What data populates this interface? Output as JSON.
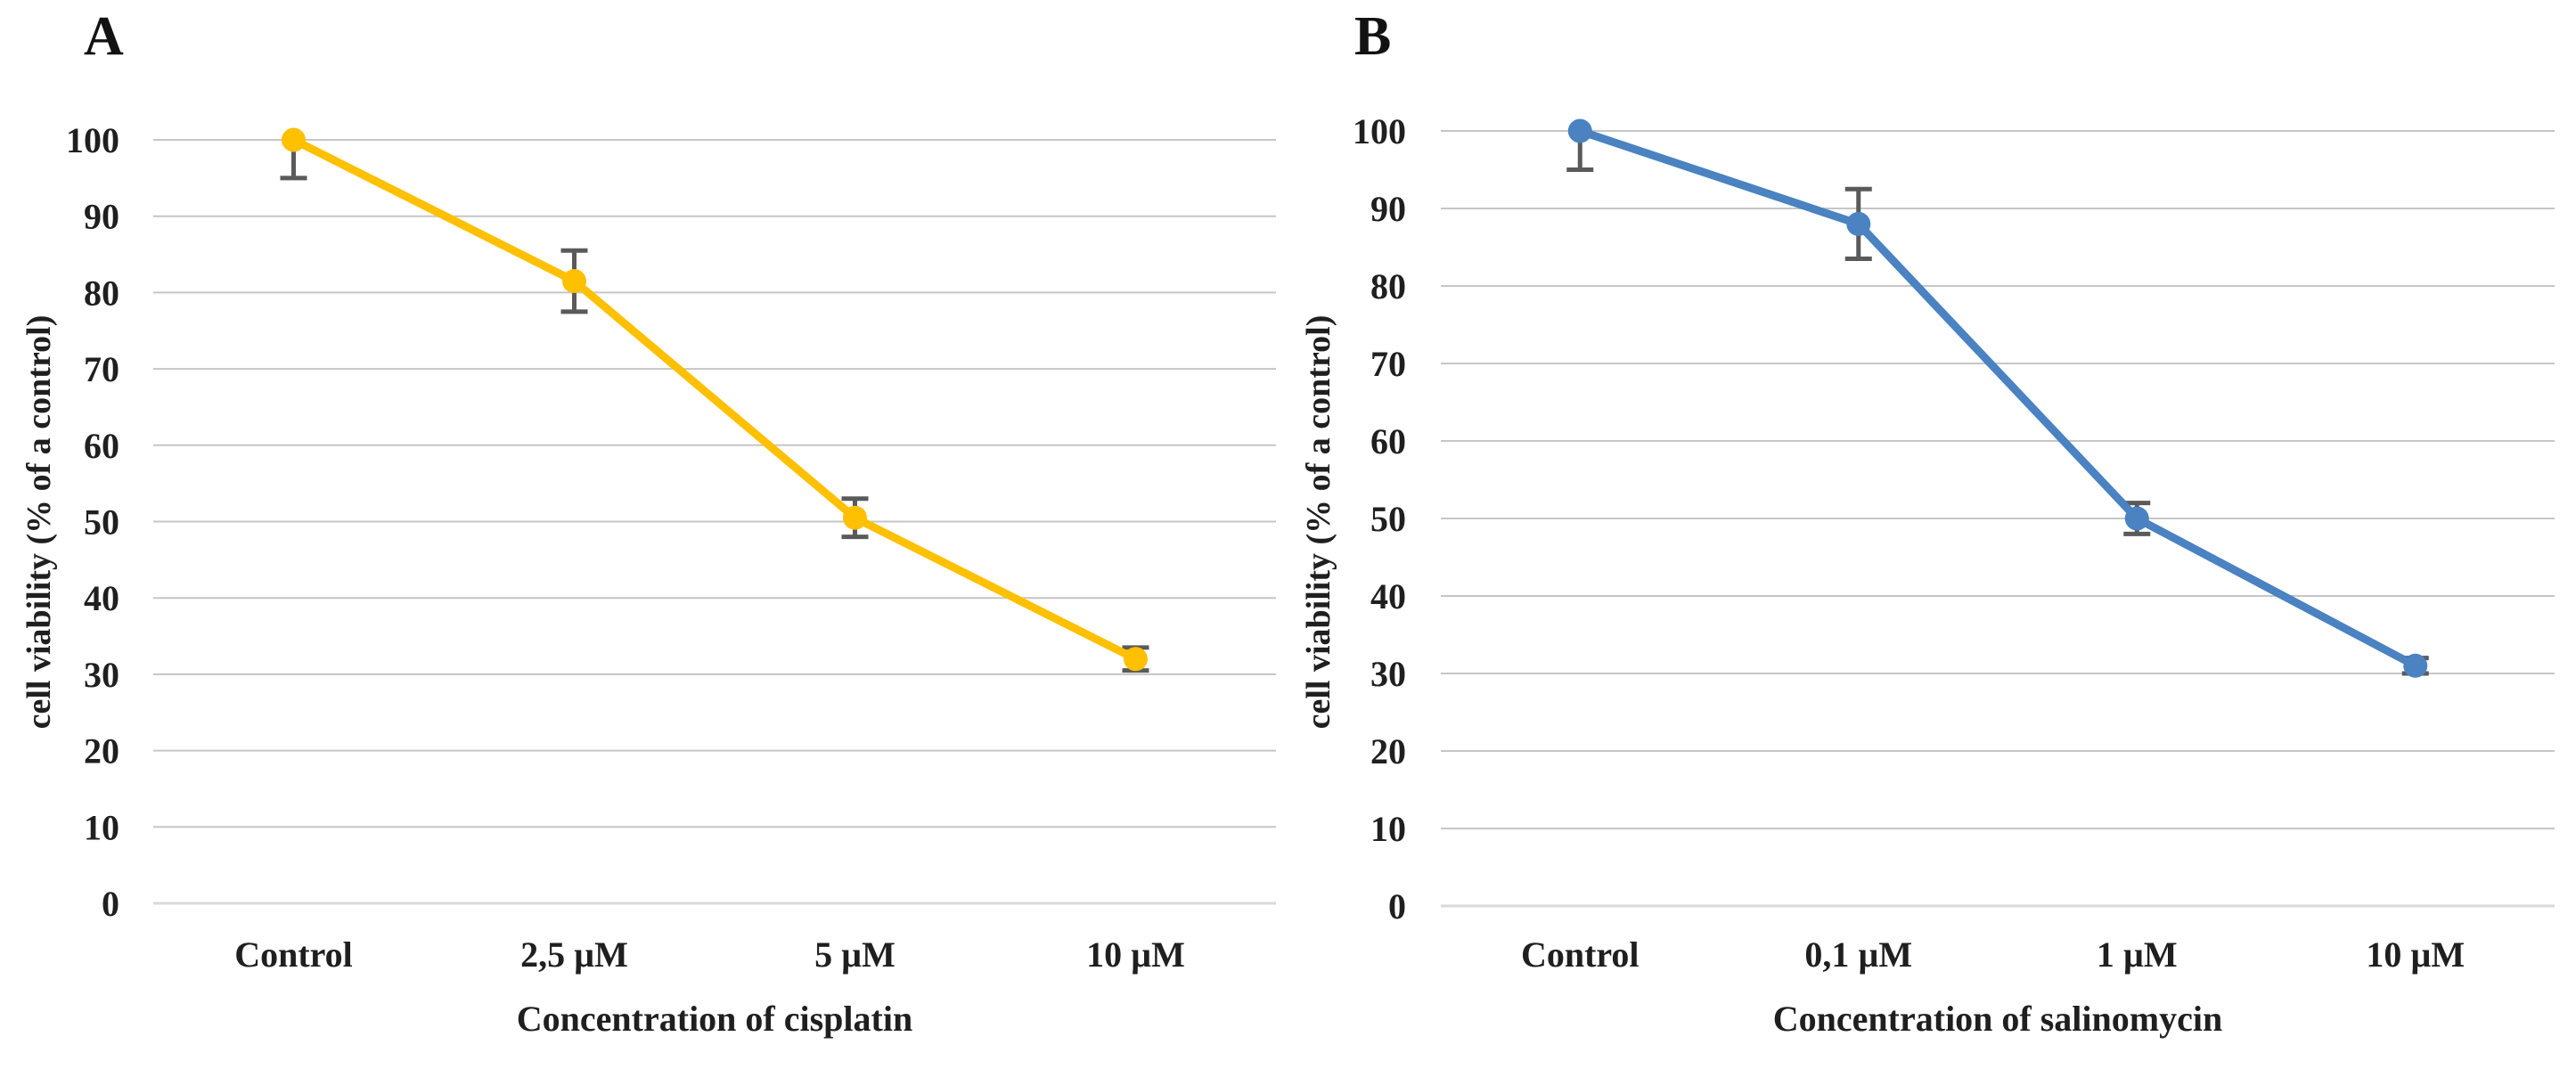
{
  "figure": {
    "background": "#ffffff",
    "text_color": "#1f1f1f",
    "gridline_color": "#c6c6c6",
    "baseline_color": "#d9d9d9",
    "error_bar_color": "#5a5a5a"
  },
  "chart_data": [
    {
      "type": "line",
      "panel_label": "A",
      "title": "",
      "xlabel": "Concentration of cisplatin",
      "ylabel": "cell viability (% of a control)",
      "categories": [
        "Control",
        "2,5 µM",
        "5 µM",
        "10 µM"
      ],
      "yticks": [
        0,
        10,
        20,
        30,
        40,
        50,
        60,
        70,
        80,
        90,
        100
      ],
      "ylim": [
        0,
        100
      ],
      "grid": true,
      "legend_position": "none",
      "series": [
        {
          "name": "cisplatin",
          "color": "#FFC000",
          "marker": "circle",
          "values": [
            100,
            81.5,
            50.5,
            32
          ],
          "err_down": [
            5,
            4,
            2.5,
            1.5
          ],
          "err_up": [
            0,
            4,
            2.5,
            1.5
          ]
        }
      ]
    },
    {
      "type": "line",
      "panel_label": "B",
      "title": "",
      "xlabel": "Concentration of salinomycin",
      "ylabel": "cell viability (% of a control)",
      "categories": [
        "Control",
        "0,1 µM",
        "1 µM",
        "10 µM"
      ],
      "yticks": [
        0,
        10,
        20,
        30,
        40,
        50,
        60,
        70,
        80,
        90,
        100
      ],
      "ylim": [
        0,
        100
      ],
      "grid": true,
      "legend_position": "none",
      "series": [
        {
          "name": "salinomycin",
          "color": "#4A82C2",
          "marker": "circle",
          "values": [
            100,
            88,
            50,
            31
          ],
          "err_down": [
            5,
            4.5,
            2,
            1
          ],
          "err_up": [
            0,
            4.5,
            2,
            1
          ]
        }
      ]
    }
  ]
}
